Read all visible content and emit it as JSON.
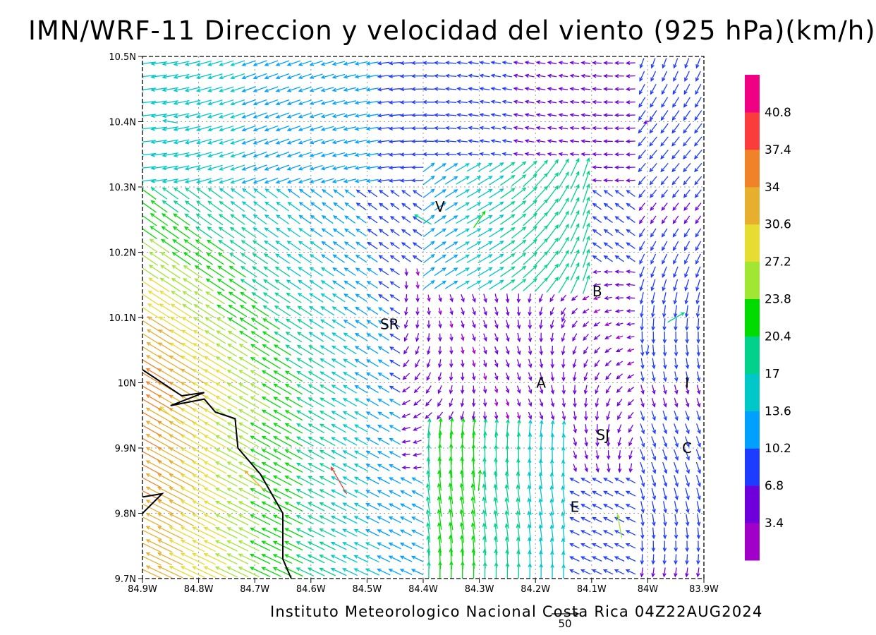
{
  "title": "IMN/WRF-11 Direccion y velocidad del viento (925 hPa)(km/h)",
  "footer": "Instituto Meteorologico Nacional Costa Rica 04Z22AUG2024",
  "chart_data": {
    "type": "vector",
    "units": "km/h",
    "level": "925 hPa",
    "x_ticks": [
      {
        "value": -84.9,
        "label": "84.9W"
      },
      {
        "value": -84.8,
        "label": "84.8W"
      },
      {
        "value": -84.7,
        "label": "84.7W"
      },
      {
        "value": -84.6,
        "label": "84.6W"
      },
      {
        "value": -84.5,
        "label": "84.5W"
      },
      {
        "value": -84.4,
        "label": "84.4W"
      },
      {
        "value": -84.3,
        "label": "84.3W"
      },
      {
        "value": -84.2,
        "label": "84.2W"
      },
      {
        "value": -84.1,
        "label": "84.1W"
      },
      {
        "value": -84.0,
        "label": "84W"
      },
      {
        "value": -83.9,
        "label": "83.9W"
      }
    ],
    "y_ticks": [
      {
        "value": 9.7,
        "label": "9.7N"
      },
      {
        "value": 9.8,
        "label": "9.8N"
      },
      {
        "value": 9.9,
        "label": "9.9N"
      },
      {
        "value": 10.0,
        "label": "10N"
      },
      {
        "value": 10.1,
        "label": "10.1N"
      },
      {
        "value": 10.2,
        "label": "10.2N"
      },
      {
        "value": 10.3,
        "label": "10.3N"
      },
      {
        "value": 10.4,
        "label": "10.4N"
      },
      {
        "value": 10.5,
        "label": "10.5N"
      }
    ],
    "xlim": [
      -84.9,
      -83.9
    ],
    "ylim": [
      9.7,
      10.5
    ],
    "grid": true,
    "colorbar": {
      "labels": [
        "3.4",
        "6.8",
        "10.2",
        "13.6",
        "17",
        "20.4",
        "23.8",
        "27.2",
        "30.6",
        "34",
        "37.4",
        "40.8"
      ],
      "colors": [
        "#a000c8",
        "#6e00dc",
        "#1e3cff",
        "#00a0ff",
        "#00c8c8",
        "#00d28c",
        "#00dc00",
        "#a0e632",
        "#e6dc32",
        "#e6af2d",
        "#f08228",
        "#fa3c3c",
        "#f00082"
      ]
    },
    "reference_vector": {
      "label": "50",
      "speed": 50
    },
    "places": [
      {
        "label": "V",
        "lon": -84.37,
        "lat": 10.27
      },
      {
        "label": "B",
        "lon": -84.09,
        "lat": 10.14
      },
      {
        "label": "SR",
        "lon": -84.46,
        "lat": 10.09
      },
      {
        "label": "A",
        "lon": -84.19,
        "lat": 10.0
      },
      {
        "label": "I",
        "lon": -83.93,
        "lat": 10.0
      },
      {
        "label": "SJ",
        "lon": -84.08,
        "lat": 9.92
      },
      {
        "label": "C",
        "lon": -83.93,
        "lat": 9.9
      },
      {
        "label": "E",
        "lon": -84.13,
        "lat": 9.81
      }
    ],
    "coastline": [
      [
        -84.9,
        10.02
      ],
      [
        -84.83,
        9.98
      ],
      [
        -84.79,
        9.985
      ],
      [
        -84.85,
        9.965
      ],
      [
        -84.79,
        9.975
      ],
      [
        -84.77,
        9.955
      ],
      [
        -84.735,
        9.945
      ],
      [
        -84.73,
        9.9
      ],
      [
        -84.71,
        9.88
      ],
      [
        -84.69,
        9.86
      ],
      [
        -84.67,
        9.83
      ],
      [
        -84.65,
        9.8
      ],
      [
        -84.65,
        9.73
      ],
      [
        -84.635,
        9.7
      ]
    ],
    "coastline_2": [
      [
        -84.9,
        9.8
      ],
      [
        -84.865,
        9.83
      ],
      [
        -84.9,
        9.825
      ]
    ],
    "vectors": [
      {
        "lon": -84.85,
        "lat": 9.95,
        "speed": 30,
        "dir_deg": 140
      },
      {
        "lon": -84.7,
        "lat": 9.85,
        "speed": 32,
        "dir_deg": 135
      },
      {
        "lon": -84.55,
        "lat": 9.85,
        "speed": 38,
        "dir_deg": 120
      },
      {
        "lon": -84.85,
        "lat": 10.4,
        "speed": 14,
        "dir_deg": 170
      },
      {
        "lon": -84.4,
        "lat": 10.25,
        "speed": 20,
        "dir_deg": 150
      },
      {
        "lon": -84.3,
        "lat": 10.25,
        "speed": 21,
        "dir_deg": 55
      },
      {
        "lon": -84.3,
        "lat": 9.85,
        "speed": 22,
        "dir_deg": 85
      },
      {
        "lon": -84.15,
        "lat": 10.1,
        "speed": 5,
        "dir_deg": 250
      },
      {
        "lon": -84.0,
        "lat": 10.05,
        "speed": 7,
        "dir_deg": 260
      },
      {
        "lon": -84.0,
        "lat": 10.4,
        "speed": 5,
        "dir_deg": 200
      },
      {
        "lon": -83.95,
        "lat": 10.1,
        "speed": 20,
        "dir_deg": 30
      },
      {
        "lon": -84.05,
        "lat": 9.78,
        "speed": 26,
        "dir_deg": 100
      }
    ]
  }
}
